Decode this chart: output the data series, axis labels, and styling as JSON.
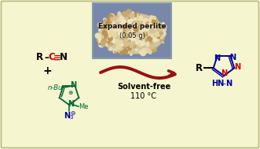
{
  "background_color": "#F5F5D0",
  "border_color": "#BBBB88",
  "arrow_color": "#991111",
  "nitrile_color": "#CC0000",
  "black": "#000000",
  "imidazolium_color": "#006633",
  "azide_color": "#000099",
  "tet_N_red": "#CC0000",
  "tet_N_blue": "#000099",
  "tet_bond": "#000099",
  "label_solvent": "Solvent-free",
  "label_temp": "110 °C",
  "perlite_label1": "Expanded perlite",
  "perlite_label2": "(0.05 g)",
  "perlite_bg": "#7788AA",
  "figsize": [
    3.31,
    1.89
  ],
  "dpi": 100
}
